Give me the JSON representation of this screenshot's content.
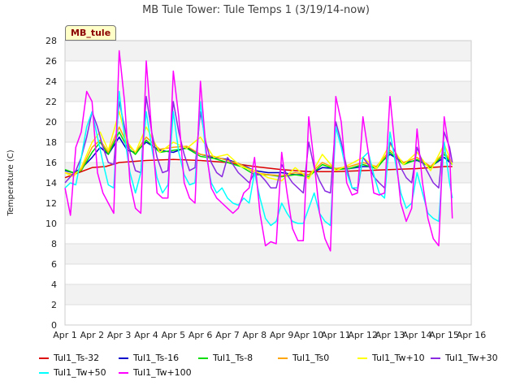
{
  "chart_data": {
    "type": "line",
    "title": "MB Tule Tower: Tule Temps 1 (3/19/14-now)",
    "ylabel": "Temperature (C)",
    "xlabel": "",
    "station_label": "MB_tule",
    "ylim": [
      0,
      28
    ],
    "xlim": [
      1,
      16
    ],
    "y_ticks": [
      0,
      2,
      4,
      6,
      8,
      10,
      12,
      14,
      16,
      18,
      20,
      22,
      24,
      26,
      28
    ],
    "x_ticks": [
      {
        "x": 1,
        "label": "Apr 1"
      },
      {
        "x": 2,
        "label": "Apr 2"
      },
      {
        "x": 3,
        "label": "Apr 3"
      },
      {
        "x": 4,
        "label": "Apr 4"
      },
      {
        "x": 5,
        "label": "Apr 5"
      },
      {
        "x": 6,
        "label": "Apr 6"
      },
      {
        "x": 7,
        "label": "Apr 7"
      },
      {
        "x": 8,
        "label": "Apr 8"
      },
      {
        "x": 9,
        "label": "Apr 9"
      },
      {
        "x": 10,
        "label": "Apr 10"
      },
      {
        "x": 11,
        "label": "Apr 11"
      },
      {
        "x": 12,
        "label": "Apr 12"
      },
      {
        "x": 13,
        "label": "Apr 13"
      },
      {
        "x": 14,
        "label": "Apr 14"
      },
      {
        "x": 15,
        "label": "Apr 15"
      },
      {
        "x": 16,
        "label": "Apr 16"
      }
    ],
    "grid": "horizontal bands",
    "legend_position": "bottom",
    "series": [
      {
        "name": "Tul1_Ts-32",
        "color": "#dd0000",
        "x": [
          1,
          1.5,
          2,
          2.5,
          3,
          4,
          5,
          6,
          7,
          8,
          9,
          10,
          11,
          12,
          13,
          14,
          15,
          15.3
        ],
        "y": [
          14.5,
          15.0,
          15.5,
          15.6,
          16.0,
          16.2,
          16.3,
          16.2,
          16.0,
          15.6,
          15.3,
          15.1,
          15.1,
          15.2,
          15.3,
          15.4,
          15.6,
          15.6
        ]
      },
      {
        "name": "Tul1_Ts-16",
        "color": "#0000cc",
        "x": [
          1,
          1.3,
          1.6,
          2,
          2.3,
          2.6,
          3,
          3.3,
          3.6,
          4,
          4.5,
          5,
          5.5,
          6,
          6.5,
          7,
          7.5,
          8,
          8.5,
          9,
          9.5,
          10,
          10.5,
          11,
          11.5,
          12,
          12.5,
          13,
          13.5,
          14,
          14.5,
          15,
          15.3
        ],
        "y": [
          15.2,
          15.0,
          15.4,
          16.5,
          17.5,
          16.8,
          18.5,
          17.2,
          17.0,
          18.0,
          17.2,
          17.0,
          17.5,
          16.8,
          16.5,
          16.3,
          15.8,
          15.2,
          15.0,
          15.0,
          14.8,
          14.8,
          15.5,
          15.4,
          15.4,
          15.6,
          15.6,
          16.8,
          16.0,
          16.2,
          15.6,
          16.5,
          15.8
        ]
      },
      {
        "name": "Tul1_Ts-8",
        "color": "#00dd00",
        "x": [
          1,
          1.3,
          1.6,
          2,
          2.3,
          2.6,
          3,
          3.3,
          3.6,
          4,
          4.5,
          5,
          5.5,
          6,
          6.5,
          7,
          7.5,
          8,
          8.5,
          9,
          9.5,
          10,
          10.5,
          11,
          11.5,
          12,
          12.5,
          13,
          13.5,
          14,
          14.5,
          15,
          15.3
        ],
        "y": [
          15.3,
          15.0,
          15.2,
          17.0,
          18.0,
          16.8,
          19.0,
          17.5,
          16.8,
          18.2,
          17.0,
          17.2,
          17.4,
          16.6,
          16.4,
          16.0,
          15.6,
          14.8,
          14.8,
          14.6,
          14.8,
          14.6,
          15.8,
          15.3,
          15.4,
          15.8,
          15.4,
          17.0,
          15.8,
          16.3,
          15.5,
          16.8,
          15.8
        ]
      },
      {
        "name": "Tul1_Ts0",
        "color": "#ffa500",
        "x": [
          1,
          1.3,
          1.6,
          2,
          2.3,
          2.6,
          3,
          3.3,
          3.6,
          4,
          4.5,
          5,
          5.5,
          6,
          6.5,
          7,
          7.5,
          8,
          8.5,
          9,
          9.5,
          10,
          10.5,
          11,
          11.5,
          12,
          12.5,
          13,
          13.5,
          14,
          14.5,
          15,
          15.3
        ],
        "y": [
          15.0,
          14.8,
          15.3,
          17.5,
          18.2,
          17.0,
          19.5,
          17.8,
          17.0,
          18.5,
          17.3,
          17.5,
          17.6,
          16.8,
          16.6,
          16.2,
          15.8,
          15.0,
          14.8,
          14.7,
          15.0,
          14.8,
          16.0,
          15.4,
          15.6,
          16.0,
          15.6,
          17.2,
          16.0,
          16.5,
          15.6,
          17.0,
          16.0
        ]
      },
      {
        "name": "Tul1_Tw+10",
        "color": "#ffff00",
        "x": [
          1,
          1.3,
          1.6,
          2,
          2.3,
          2.6,
          3,
          3.3,
          3.6,
          4,
          4.5,
          5,
          5.5,
          6,
          6.5,
          7,
          7.5,
          8,
          8.5,
          9,
          9.5,
          10,
          10.5,
          11,
          11.5,
          12,
          12.5,
          13,
          13.5,
          14,
          14.5,
          15,
          15.3
        ],
        "y": [
          15.0,
          14.6,
          15.5,
          18.0,
          19.0,
          17.2,
          21.0,
          18.0,
          17.0,
          19.5,
          17.0,
          18.0,
          17.4,
          18.5,
          16.5,
          16.8,
          15.6,
          15.2,
          14.5,
          14.2,
          15.5,
          14.4,
          16.8,
          15.2,
          15.8,
          16.5,
          15.4,
          17.8,
          15.8,
          17.0,
          15.2,
          17.8,
          15.8
        ]
      },
      {
        "name": "Tul1_Tw+30",
        "color": "#8a2be2",
        "x": [
          1,
          1.2,
          1.4,
          1.6,
          1.8,
          2,
          2.2,
          2.4,
          2.6,
          2.8,
          3,
          3.2,
          3.4,
          3.6,
          3.8,
          4,
          4.2,
          4.4,
          4.6,
          4.8,
          5,
          5.2,
          5.4,
          5.6,
          5.8,
          6,
          6.2,
          6.4,
          6.6,
          6.8,
          7,
          7.2,
          7.4,
          7.6,
          7.8,
          8,
          8.2,
          8.4,
          8.6,
          8.8,
          9,
          9.2,
          9.4,
          9.6,
          9.8,
          10,
          10.2,
          10.4,
          10.6,
          10.8,
          11,
          11.2,
          11.4,
          11.6,
          11.8,
          12,
          12.2,
          12.4,
          12.6,
          12.8,
          13,
          13.2,
          13.4,
          13.6,
          13.8,
          14,
          14.2,
          14.4,
          14.6,
          14.8,
          15,
          15.2,
          15.3
        ],
        "y": [
          14.0,
          14.6,
          15.2,
          16.5,
          18.5,
          21.0,
          19.5,
          17.5,
          16.0,
          15.8,
          22.0,
          19.5,
          17.0,
          15.2,
          15.0,
          22.5,
          19.0,
          16.5,
          15.0,
          15.2,
          22.0,
          19.0,
          16.8,
          15.2,
          15.5,
          21.0,
          18.0,
          16.0,
          15.0,
          14.6,
          16.5,
          15.8,
          15.0,
          14.5,
          14.0,
          15.0,
          14.8,
          14.2,
          13.5,
          13.5,
          15.8,
          14.8,
          14.0,
          13.5,
          13.0,
          18.0,
          15.5,
          14.2,
          13.2,
          13.0,
          20.0,
          18.0,
          15.5,
          13.5,
          13.2,
          16.5,
          15.8,
          14.6,
          14.0,
          13.5,
          18.0,
          17.0,
          15.5,
          14.5,
          14.0,
          17.5,
          16.0,
          15.0,
          14.0,
          13.5,
          19.0,
          17.5,
          16.0
        ]
      },
      {
        "name": "Tul1_Tw+50",
        "color": "#00ffff",
        "x": [
          1,
          1.2,
          1.4,
          1.6,
          1.8,
          2,
          2.2,
          2.4,
          2.6,
          2.8,
          3,
          3.2,
          3.4,
          3.6,
          3.8,
          4,
          4.2,
          4.4,
          4.6,
          4.8,
          5,
          5.2,
          5.4,
          5.6,
          5.8,
          6,
          6.2,
          6.4,
          6.6,
          6.8,
          7,
          7.2,
          7.4,
          7.6,
          7.8,
          8,
          8.2,
          8.4,
          8.6,
          8.8,
          9,
          9.2,
          9.4,
          9.6,
          9.8,
          10,
          10.2,
          10.4,
          10.6,
          10.8,
          11,
          11.2,
          11.4,
          11.6,
          11.8,
          12,
          12.2,
          12.4,
          12.6,
          12.8,
          13,
          13.2,
          13.4,
          13.6,
          13.8,
          14,
          14.2,
          14.4,
          14.6,
          14.8,
          15,
          15.2,
          15.3
        ],
        "y": [
          13.5,
          14.0,
          13.8,
          16.5,
          19.5,
          21.0,
          18.5,
          16.0,
          13.8,
          13.5,
          23.0,
          18.5,
          15.0,
          13.0,
          15.0,
          21.0,
          17.5,
          14.5,
          13.0,
          13.8,
          21.0,
          17.0,
          14.8,
          13.8,
          14.0,
          22.0,
          17.0,
          14.0,
          13.0,
          13.5,
          12.5,
          12.0,
          11.8,
          12.5,
          12.0,
          15.0,
          12.5,
          10.5,
          9.8,
          10.2,
          12.0,
          11.0,
          10.2,
          10.0,
          10.0,
          11.5,
          13.0,
          11.0,
          10.2,
          9.8,
          19.5,
          17.5,
          15.0,
          13.5,
          13.5,
          16.5,
          17.0,
          14.8,
          13.0,
          12.5,
          19.0,
          16.0,
          13.0,
          11.5,
          12.0,
          15.0,
          13.0,
          11.0,
          10.5,
          10.2,
          18.0,
          14.0,
          12.5
        ]
      },
      {
        "name": "Tul1_Tw+100",
        "color": "#ff00ff",
        "x": [
          1,
          1.2,
          1.4,
          1.6,
          1.8,
          2,
          2.2,
          2.4,
          2.6,
          2.8,
          3,
          3.2,
          3.4,
          3.6,
          3.8,
          4,
          4.2,
          4.4,
          4.6,
          4.8,
          5,
          5.2,
          5.4,
          5.6,
          5.8,
          6,
          6.2,
          6.4,
          6.6,
          6.8,
          7,
          7.2,
          7.4,
          7.6,
          7.8,
          8,
          8.2,
          8.4,
          8.6,
          8.8,
          9,
          9.2,
          9.4,
          9.6,
          9.8,
          10,
          10.2,
          10.4,
          10.6,
          10.8,
          11,
          11.2,
          11.4,
          11.6,
          11.8,
          12,
          12.2,
          12.4,
          12.6,
          12.8,
          13,
          13.2,
          13.4,
          13.6,
          13.8,
          14,
          14.2,
          14.4,
          14.6,
          14.8,
          15,
          15.2,
          15.3
        ],
        "y": [
          13.5,
          10.8,
          17.5,
          19.0,
          23.0,
          22.0,
          15.0,
          13.0,
          12.0,
          11.0,
          27.0,
          22.0,
          14.0,
          11.5,
          11.0,
          26.0,
          19.0,
          13.0,
          12.5,
          12.5,
          25.0,
          20.5,
          14.0,
          12.5,
          12.0,
          24.0,
          17.5,
          13.5,
          12.5,
          12.0,
          11.5,
          11.0,
          11.5,
          13.0,
          13.5,
          16.5,
          11.0,
          7.8,
          8.2,
          8.0,
          17.0,
          13.0,
          9.5,
          8.3,
          8.3,
          20.5,
          16.0,
          11.0,
          8.5,
          7.3,
          22.5,
          20.0,
          14.0,
          12.8,
          13.0,
          20.5,
          17.0,
          13.0,
          12.8,
          13.0,
          22.5,
          17.0,
          12.0,
          10.2,
          11.5,
          19.3,
          14.0,
          10.5,
          8.5,
          7.8,
          20.5,
          17.0,
          10.5
        ]
      }
    ]
  }
}
